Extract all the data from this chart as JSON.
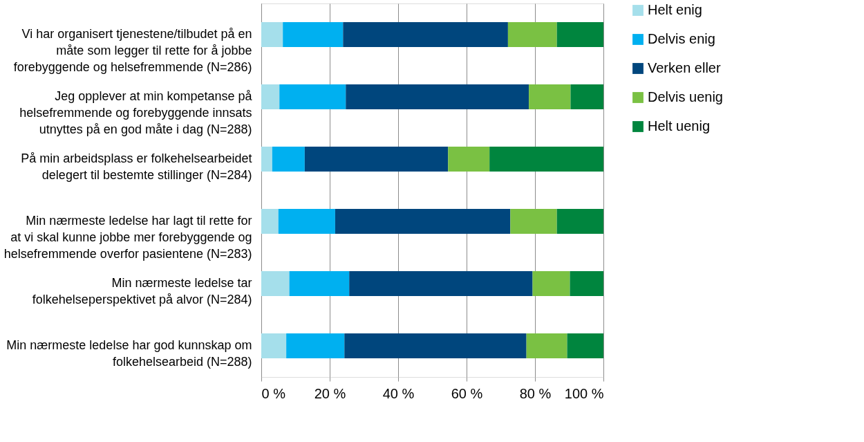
{
  "chart_data": {
    "type": "bar",
    "orientation": "horizontal",
    "stacked": true,
    "categories": [
      "Vi har organisert tjenestene/tilbudet på en måte som legger til rette for å jobbe forebyggende og helsefremmende (N=286)",
      "Jeg opplever at min kompetanse på helsefremmende og forebyggende innsats utnyttes på en god måte i dag (N=288)",
      "På min arbeidsplass er folkehelsearbeidet delegert til bestemte stillinger (N=284)",
      "Min nærmeste ledelse har lagt til rette for at vi skal kunne jobbe mer forebyggende og helsefremmende overfor pasientene (N=283)",
      "Min nærmeste ledelse tar folkehelseperspektivet på alvor (N=284)",
      "Min nærmeste ledelse har god kunnskap om folkehelsearbeid (N=288)"
    ],
    "series": [
      {
        "name": "Helt enig",
        "color": "#a5dfeb",
        "values": [
          6.3,
          5.3,
          3.2,
          5.0,
          8.2,
          7.3
        ]
      },
      {
        "name": "Delvis enig",
        "color": "#00b0f0",
        "values": [
          17.6,
          19.4,
          9.5,
          16.6,
          17.5,
          17.0
        ]
      },
      {
        "name": "Verken eller",
        "color": "#00467d",
        "values": [
          48.2,
          53.5,
          41.9,
          51.2,
          53.6,
          53.2
        ]
      },
      {
        "name": "Delvis uenig",
        "color": "#7ac143",
        "values": [
          14.3,
          12.2,
          12.1,
          13.6,
          10.9,
          11.9
        ]
      },
      {
        "name": "Helt uenig",
        "color": "#00853e",
        "values": [
          13.6,
          9.6,
          33.3,
          13.6,
          9.8,
          10.6
        ]
      }
    ],
    "xlim": [
      0,
      100
    ],
    "xticks": [
      {
        "value": 0,
        "label": "0 %"
      },
      {
        "value": 20,
        "label": "20 %"
      },
      {
        "value": 40,
        "label": "40 %"
      },
      {
        "value": 60,
        "label": "60 %"
      },
      {
        "value": 80,
        "label": "80 %"
      },
      {
        "value": 100,
        "label": "100 %"
      }
    ],
    "grid": "x",
    "legend": "right"
  }
}
